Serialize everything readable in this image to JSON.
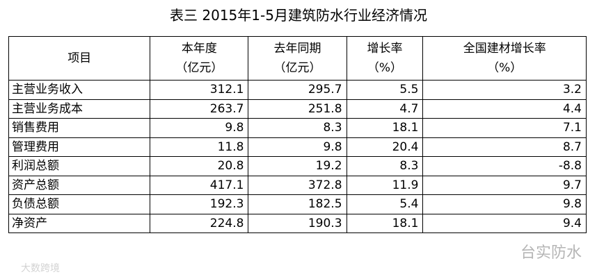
{
  "title": "表三 2015年1-5月建筑防水行业经济情况",
  "table": {
    "header": [
      [
        "项目"
      ],
      [
        "本年度",
        "（亿元）"
      ],
      [
        "去年同期",
        "（亿元）"
      ],
      [
        "增长率",
        "（%）"
      ],
      [
        "全国建材增长率",
        "（%）"
      ]
    ],
    "rows": [
      [
        "主营业务收入",
        312.1,
        295.7,
        5.5,
        3.2
      ],
      [
        "主营业务成本",
        263.7,
        251.8,
        4.7,
        4.4
      ],
      [
        "销售费用",
        9.8,
        8.3,
        18.1,
        7.1
      ],
      [
        "管理费用",
        11.8,
        9.8,
        20.4,
        8.7
      ],
      [
        "利润总额",
        20.8,
        19.2,
        8.3,
        -8.8
      ],
      [
        "资产总额",
        417.1,
        372.8,
        11.9,
        9.7
      ],
      [
        "负债总额",
        192.3,
        182.5,
        5.4,
        9.8
      ],
      [
        "净资产",
        224.8,
        190.3,
        18.1,
        9.4
      ]
    ]
  },
  "watermarks": [
    "台实防水",
    "大数跨境"
  ]
}
